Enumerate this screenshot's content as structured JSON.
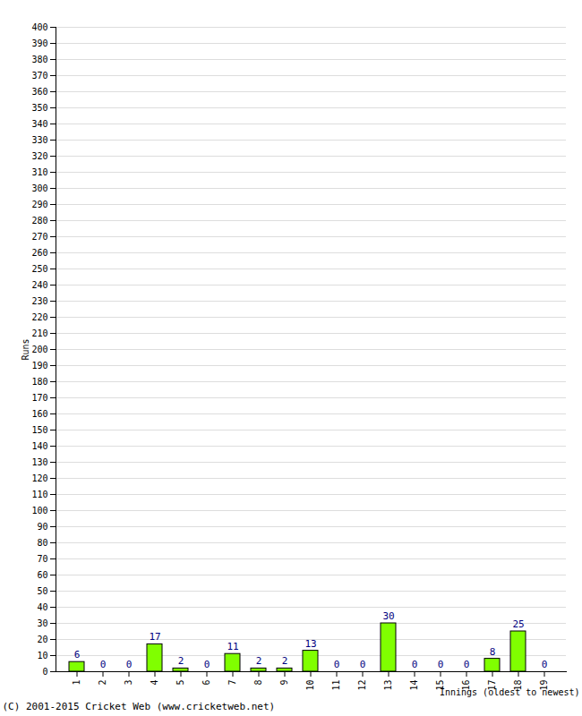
{
  "chart_data": {
    "type": "bar",
    "caption": "(C) 2001-2015 Cricket Web (www.cricketweb.net)",
    "x_label": "Innings (oldest to newest)",
    "y_label": "Runs",
    "categories": [
      "1",
      "2",
      "3",
      "4",
      "5",
      "6",
      "7",
      "8",
      "9",
      "10",
      "11",
      "12",
      "13",
      "14",
      "15",
      "16",
      "17",
      "18",
      "19"
    ],
    "values": [
      6,
      0,
      0,
      17,
      2,
      0,
      11,
      2,
      2,
      13,
      0,
      0,
      30,
      0,
      0,
      0,
      8,
      25,
      0
    ],
    "color": "#80ff00",
    "ylim": [
      0,
      400
    ],
    "yticks": [
      0,
      10,
      20,
      30,
      40,
      50,
      60,
      70,
      80,
      90,
      100,
      110,
      120,
      130,
      140,
      150,
      160,
      170,
      180,
      190,
      200,
      210,
      220,
      230,
      240,
      250,
      260,
      270,
      280,
      290,
      300,
      310,
      320,
      330,
      340,
      350,
      360,
      370,
      380,
      390,
      400
    ],
    "grid": true,
    "data_labels": true
  }
}
